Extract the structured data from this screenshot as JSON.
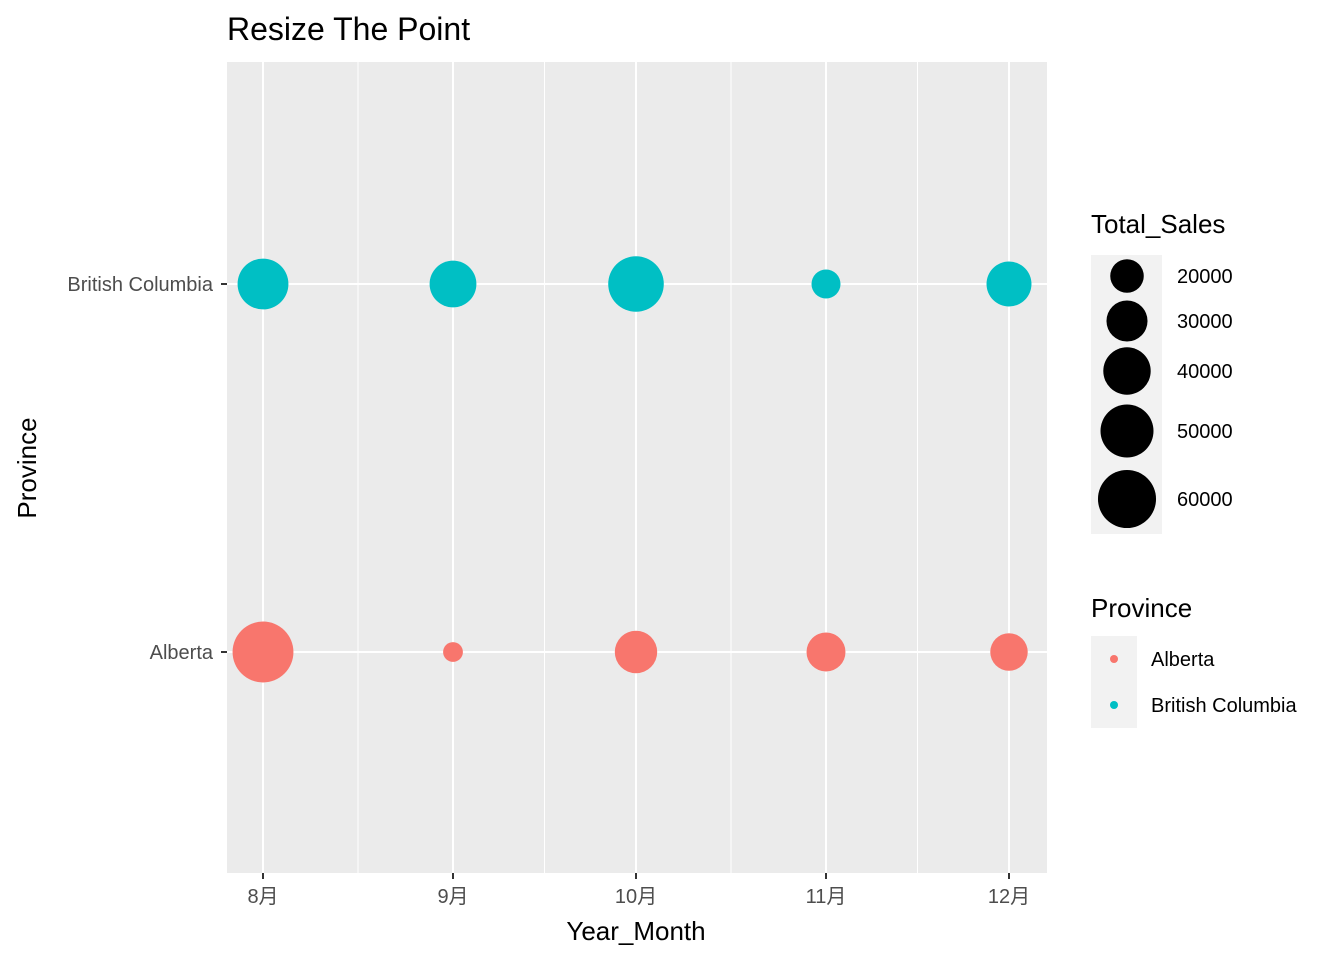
{
  "chart_data": {
    "type": "scatter",
    "title": "Resize The Point",
    "xlabel": "Year_Month",
    "ylabel": "Province",
    "x_categories": [
      "8月",
      "9月",
      "10月",
      "11月",
      "12月"
    ],
    "y_categories": [
      "Alberta",
      "British Columbia"
    ],
    "size_variable": "Total_Sales",
    "color_variable": "Province",
    "points": [
      {
        "province": "British Columbia",
        "month": "8月",
        "total_sales": 46000
      },
      {
        "province": "British Columbia",
        "month": "9月",
        "total_sales": 39000
      },
      {
        "province": "British Columbia",
        "month": "10月",
        "total_sales": 55000
      },
      {
        "province": "British Columbia",
        "month": "11月",
        "total_sales": 15000
      },
      {
        "province": "British Columbia",
        "month": "12月",
        "total_sales": 36000
      },
      {
        "province": "Alberta",
        "month": "8月",
        "total_sales": 66000
      },
      {
        "province": "Alberta",
        "month": "9月",
        "total_sales": 7000
      },
      {
        "province": "Alberta",
        "month": "10月",
        "total_sales": 32000
      },
      {
        "province": "Alberta",
        "month": "11月",
        "total_sales": 27000
      },
      {
        "province": "Alberta",
        "month": "12月",
        "total_sales": 25000
      }
    ],
    "grid": true,
    "legend_placement": "right",
    "size_legend": {
      "title": "Total_Sales",
      "breaks": [
        20000,
        30000,
        40000,
        50000,
        60000
      ],
      "labels": [
        "20000",
        "30000",
        "40000",
        "50000",
        "60000"
      ]
    },
    "color_legend": {
      "title": "Province",
      "entries": [
        {
          "label": "Alberta",
          "color": "#F8766D"
        },
        {
          "label": "British Columbia",
          "color": "#00BFC4"
        }
      ]
    }
  },
  "colors": {
    "panel_background": "#EBEBEB",
    "grid_line": "#FFFFFF",
    "legend_key_background": "#F2F2F2",
    "Alberta": "#F8766D",
    "British Columbia": "#00BFC4",
    "size_key": "#000000"
  }
}
